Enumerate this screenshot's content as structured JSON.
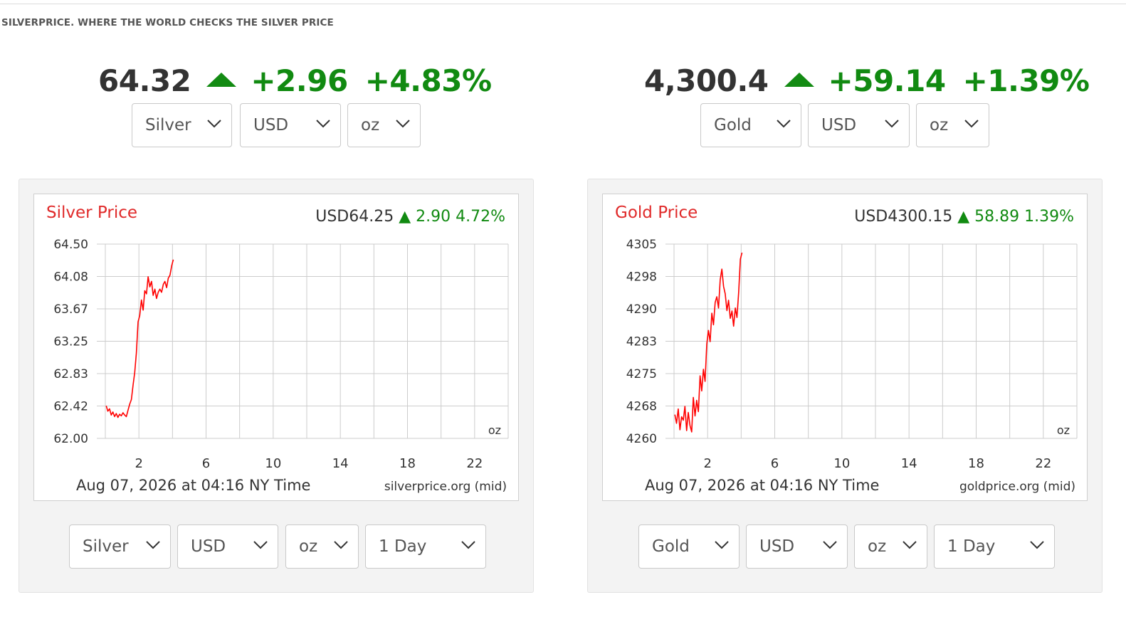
{
  "header": {
    "site_title": "SILVERPRICE. WHERE THE WORLD CHECKS THE SILVER PRICE"
  },
  "colors": {
    "up_green": "#118a11",
    "chart_red": "#ff0000",
    "chart_title_red": "#e02a2a",
    "grid": "#cccccc"
  },
  "silver": {
    "ticker": {
      "price": "64.32",
      "change": "+2.96",
      "change_pct": "+4.83%",
      "direction_icon": "triangle-up"
    },
    "top_selects": {
      "metal": "Silver",
      "currency": "USD",
      "unit": "oz"
    },
    "bottom_selects": {
      "metal": "Silver",
      "currency": "USD",
      "unit": "oz",
      "range": "1 Day"
    }
  },
  "gold": {
    "ticker": {
      "price": "4,300.4",
      "change": "+59.14",
      "change_pct": "+1.39%",
      "direction_icon": "triangle-up"
    },
    "top_selects": {
      "metal": "Gold",
      "currency": "USD",
      "unit": "oz"
    },
    "bottom_selects": {
      "metal": "Gold",
      "currency": "USD",
      "unit": "oz",
      "range": "1 Day"
    }
  },
  "chart_data": [
    {
      "type": "line",
      "title": "Silver Price",
      "quote": {
        "price": "USD64.25",
        "change": "2.90",
        "change_pct": "4.72%"
      },
      "unit_label": "oz",
      "date_label": "Aug 07, 2026 at 04:16 NY Time",
      "source_label": "silverprice.org (mid)",
      "x_ticks": [
        "2",
        "6",
        "10",
        "14",
        "18",
        "22"
      ],
      "y_ticks": [
        "64.50",
        "64.08",
        "63.67",
        "63.25",
        "62.83",
        "62.42",
        "62.00"
      ],
      "xlim": [
        0,
        24
      ],
      "ylim": [
        62.0,
        64.5
      ],
      "grid": true,
      "series": [
        {
          "x": [
            0.05,
            0.15,
            0.25,
            0.35,
            0.45,
            0.55,
            0.65,
            0.75,
            0.85,
            0.95,
            1.05,
            1.15,
            1.25,
            1.35,
            1.45,
            1.55,
            1.65,
            1.75,
            1.85,
            1.95,
            2.05,
            2.15,
            2.25,
            2.35,
            2.45,
            2.55,
            2.65,
            2.75,
            2.85,
            2.95,
            3.05,
            3.15,
            3.25,
            3.35,
            3.45,
            3.55,
            3.65,
            3.75,
            3.85,
            3.95,
            4.05
          ],
          "y": [
            62.42,
            62.35,
            62.38,
            62.3,
            62.34,
            62.28,
            62.32,
            62.27,
            62.31,
            62.29,
            62.33,
            62.3,
            62.28,
            62.36,
            62.44,
            62.5,
            62.68,
            62.85,
            63.1,
            63.5,
            63.58,
            63.78,
            63.65,
            63.9,
            63.86,
            64.08,
            63.95,
            64.02,
            63.84,
            63.92,
            63.8,
            63.88,
            63.92,
            63.88,
            63.98,
            64.02,
            63.94,
            64.06,
            64.1,
            64.22,
            64.3
          ]
        }
      ]
    },
    {
      "type": "line",
      "title": "Gold Price",
      "quote": {
        "price": "USD4300.15",
        "change": "58.89",
        "change_pct": "1.39%"
      },
      "unit_label": "oz",
      "date_label": "Aug 07, 2026 at 04:16 NY Time",
      "source_label": "goldprice.org (mid)",
      "x_ticks": [
        "2",
        "6",
        "10",
        "14",
        "18",
        "22"
      ],
      "y_ticks": [
        "4305",
        "4298",
        "4290",
        "4283",
        "4275",
        "4268",
        "4260"
      ],
      "xlim": [
        0,
        24
      ],
      "ylim": [
        4260,
        4305
      ],
      "grid": true,
      "series": [
        {
          "x": [
            0.05,
            0.15,
            0.25,
            0.35,
            0.45,
            0.55,
            0.65,
            0.75,
            0.85,
            0.95,
            1.05,
            1.15,
            1.25,
            1.35,
            1.45,
            1.55,
            1.65,
            1.75,
            1.85,
            1.95,
            2.05,
            2.15,
            2.25,
            2.35,
            2.45,
            2.55,
            2.65,
            2.75,
            2.85,
            2.95,
            3.05,
            3.15,
            3.25,
            3.35,
            3.45,
            3.55,
            3.65,
            3.75,
            3.85,
            3.95,
            4.05
          ],
          "y": [
            4265.5,
            4263.5,
            4266.8,
            4262.0,
            4265.0,
            4264.2,
            4267.4,
            4261.8,
            4266.0,
            4263.0,
            4261.5,
            4269.5,
            4265.2,
            4268.8,
            4266.2,
            4274.5,
            4271.0,
            4276.0,
            4273.2,
            4281.8,
            4285.0,
            4282.4,
            4289.0,
            4286.3,
            4291.5,
            4292.8,
            4290.2,
            4296.8,
            4299.2,
            4295.2,
            4293.5,
            4289.6,
            4292.0,
            4287.8,
            4289.5,
            4286.0,
            4290.2,
            4288.0,
            4293.8,
            4301.5,
            4303.0
          ]
        }
      ]
    }
  ]
}
